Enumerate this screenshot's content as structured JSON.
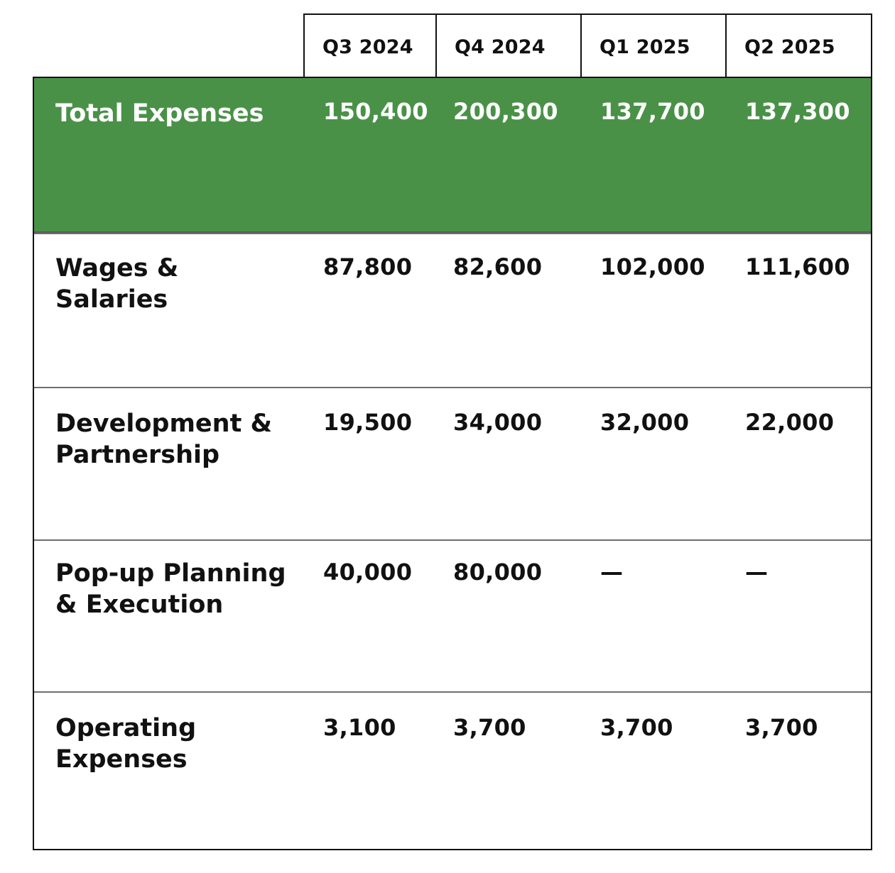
{
  "table": {
    "columns": [
      "Q3 2024",
      "Q4 2024",
      "Q1 2025",
      "Q2 2025"
    ],
    "rows": [
      {
        "label": "Total Expenses",
        "values": [
          "150,400",
          "200,300",
          "137,700",
          "137,300"
        ]
      },
      {
        "label": "Wages & Salaries",
        "values": [
          "87,800",
          "82,600",
          "102,000",
          "111,600"
        ]
      },
      {
        "label": "Development & Partnership",
        "values": [
          "19,500",
          "34,000",
          "32,000",
          "22,000"
        ]
      },
      {
        "label": "Pop-up Planning & Execution",
        "values": [
          "40,000",
          "80,000",
          "—",
          "—"
        ]
      },
      {
        "label": "Operating Expenses",
        "values": [
          "3,100",
          "3,700",
          "3,700",
          "3,700"
        ]
      }
    ]
  },
  "colors": {
    "total_row_background": "#4a9148",
    "total_row_text": "#ffffff",
    "border": "#111111",
    "row_divider": "#6e6e6e"
  }
}
